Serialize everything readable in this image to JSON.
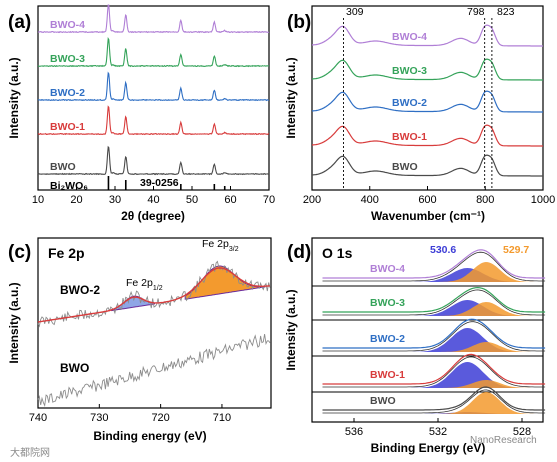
{
  "colors": {
    "BWO": "#4a4a4a",
    "BWO-1": "#d83c3c",
    "BWO-2": "#2f6fc4",
    "BWO-3": "#35a35a",
    "BWO-4": "#b07fd6",
    "blue_fill": "#3d3dd6",
    "orange_fill": "#f39a2e",
    "fit_purple": "#6a2a9a",
    "noise_gray": "#8c8c8c"
  },
  "panels": {
    "a": {
      "label": "(a)",
      "xlabel": "2θ (degree)",
      "ylabel": "Intensity (a.u.)",
      "xticks": [
        "10",
        "20",
        "30",
        "40",
        "50",
        "60",
        "70"
      ]
    },
    "b": {
      "label": "(b)",
      "xlabel": "Wavenumber (cm⁻¹)",
      "ylabel": "Intensity (a.u.)",
      "xticks": [
        "200",
        "400",
        "600",
        "800",
        "1000"
      ]
    },
    "c": {
      "label": "(c)",
      "title": "Fe 2p",
      "xlabel": "Binding energy (eV)",
      "ylabel": "Intensity (a.u.)",
      "xticks": [
        "740",
        "730",
        "720",
        "710"
      ]
    },
    "d": {
      "label": "(d)",
      "title": "O 1s",
      "xlabel": "Binding Energy (eV)",
      "ylabel": "Intensity (a.u.)",
      "xticks": [
        "536",
        "532",
        "528"
      ]
    }
  },
  "chart_data": [
    {
      "type": "line",
      "panel": "a",
      "xlabel": "2θ (degree)",
      "ylabel": "Intensity (a.u.)",
      "xlim": [
        10,
        70
      ],
      "series": [
        {
          "name": "BWO-4",
          "peaks": [
            28.3,
            32.8,
            47.1,
            55.8
          ]
        },
        {
          "name": "BWO-3",
          "peaks": [
            28.3,
            32.8,
            47.1,
            55.8
          ]
        },
        {
          "name": "BWO-2",
          "peaks": [
            28.3,
            32.8,
            47.1,
            55.8
          ]
        },
        {
          "name": "BWO-1",
          "peaks": [
            28.3,
            32.8,
            47.1,
            55.8
          ]
        },
        {
          "name": "BWO",
          "peaks": [
            28.3,
            32.8,
            47.1,
            55.8
          ]
        }
      ],
      "reference": {
        "name": "Bi₂WO₆",
        "card": "39-0256",
        "lines": [
          28.3,
          32.8,
          47.1,
          55.8,
          58.5
        ]
      }
    },
    {
      "type": "line",
      "panel": "b",
      "xlabel": "Wavenumber (cm⁻¹)",
      "ylabel": "Intensity (a.u.)",
      "xlim": [
        200,
        1000
      ],
      "series": [
        {
          "name": "BWO-4",
          "peaks": [
            309,
            798,
            823
          ]
        },
        {
          "name": "BWO-3",
          "peaks": [
            309,
            798,
            823
          ]
        },
        {
          "name": "BWO-2",
          "peaks": [
            309,
            798,
            823
          ]
        },
        {
          "name": "BWO-1",
          "peaks": [
            309,
            798,
            823
          ]
        },
        {
          "name": "BWO",
          "peaks": [
            309,
            798,
            823
          ]
        }
      ],
      "annotations": [
        "309",
        "798",
        "823"
      ]
    },
    {
      "type": "line",
      "panel": "c",
      "xlabel": "Binding energy (eV)",
      "ylabel": "Intensity (a.u.)",
      "xlim": [
        740,
        702
      ],
      "series": [
        {
          "name": "BWO-2",
          "peaks": [
            724.4,
            710.6
          ]
        },
        {
          "name": "BWO",
          "peaks": []
        }
      ],
      "annotations": [
        "Fe 2p1/2",
        "Fe 2p3/2"
      ]
    },
    {
      "type": "area",
      "panel": "d",
      "xlabel": "Binding Energy (eV)",
      "ylabel": "Intensity (a.u.)",
      "xlim": [
        538,
        527
      ],
      "series": [
        {
          "name": "BWO-4",
          "peaks": [
            530.6,
            529.7
          ]
        },
        {
          "name": "BWO-3",
          "peaks": [
            530.6,
            529.7
          ]
        },
        {
          "name": "BWO-2",
          "peaks": [
            530.6,
            529.7
          ]
        },
        {
          "name": "BWO-1",
          "peaks": [
            530.6,
            529.7
          ]
        },
        {
          "name": "BWO",
          "peaks": [
            530.6,
            529.7
          ]
        }
      ],
      "annotations": [
        "530.6",
        "529.7"
      ]
    }
  ],
  "labels": {
    "a_series": [
      "BWO-4",
      "BWO-3",
      "BWO-2",
      "BWO-1",
      "BWO"
    ],
    "b_series": [
      "BWO-4",
      "BWO-3",
      "BWO-2",
      "BWO-1",
      "BWO"
    ],
    "d_series": [
      "BWO-4",
      "BWO-3",
      "BWO-2",
      "BWO-1",
      "BWO"
    ],
    "a_ref_name": "Bi₂WO₆",
    "a_ref_card": "39-0256",
    "b_peak1": "309",
    "b_peak2": "798",
    "b_peak3": "823",
    "c_top": "BWO-2",
    "c_bottom": "BWO",
    "c_peak1": "Fe 2p",
    "c_peak1_sub": "1/2",
    "c_peak2": "Fe 2p",
    "c_peak2_sub": "3/2",
    "d_peak1": "530.6",
    "d_peak2": "529.7"
  },
  "watermarks": {
    "left": "大都院网",
    "right": "NanoResearch"
  }
}
